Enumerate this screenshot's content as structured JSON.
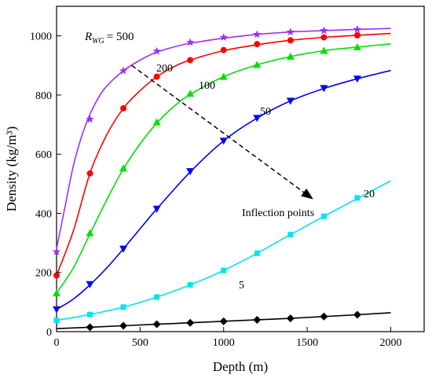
{
  "chart_data": {
    "type": "line",
    "xlabel": "Depth (m)",
    "ylabel": "Density (kg/m³)",
    "xlim": [
      0,
      2200
    ],
    "ylim": [
      0,
      1100
    ],
    "x_ticks": [
      0,
      500,
      1000,
      1500,
      2000
    ],
    "y_ticks": [
      0,
      200,
      400,
      600,
      800,
      1000
    ],
    "grid": false,
    "series": [
      {
        "name": "500",
        "color": "#9b30ff",
        "marker": "star",
        "curve": {
          "x": [
            0,
            50,
            100,
            150,
            200,
            250,
            300,
            400,
            500,
            600,
            700,
            800,
            1000,
            1200,
            1400,
            1600,
            1800,
            2000
          ],
          "y": [
            280,
            420,
            560,
            660,
            735,
            790,
            830,
            882,
            918,
            945,
            962,
            975,
            992,
            1005,
            1013,
            1018,
            1022,
            1025
          ]
        },
        "points": {
          "x": [
            0,
            200,
            400,
            600,
            800,
            1000,
            1200,
            1400,
            1600,
            1800
          ],
          "y": [
            270,
            718,
            882,
            948,
            978,
            995,
            1005,
            1013,
            1018,
            1022
          ]
        }
      },
      {
        "name": "200",
        "color": "#ff0000",
        "marker": "circle",
        "curve": {
          "x": [
            0,
            100,
            200,
            300,
            400,
            500,
            600,
            700,
            800,
            1000,
            1200,
            1400,
            1600,
            1800,
            2000
          ],
          "y": [
            190,
            340,
            535,
            665,
            755,
            815,
            862,
            895,
            918,
            950,
            970,
            985,
            995,
            1002,
            1008
          ]
        },
        "points": {
          "x": [
            0,
            200,
            400,
            600,
            800,
            1000,
            1200,
            1400,
            1600,
            1800
          ],
          "y": [
            190,
            535,
            755,
            862,
            918,
            952,
            972,
            985,
            995,
            1002
          ]
        }
      },
      {
        "name": "100",
        "color": "#00e000",
        "marker": "triangle-up",
        "curve": {
          "x": [
            0,
            100,
            200,
            300,
            400,
            500,
            600,
            700,
            800,
            1000,
            1200,
            1400,
            1600,
            1800,
            2000
          ],
          "y": [
            130,
            215,
            330,
            445,
            550,
            635,
            705,
            760,
            802,
            862,
            902,
            930,
            950,
            962,
            973
          ]
        },
        "points": {
          "x": [
            0,
            200,
            400,
            600,
            800,
            1000,
            1200,
            1400,
            1600,
            1800
          ],
          "y": [
            130,
            333,
            552,
            708,
            805,
            862,
            902,
            930,
            950,
            962
          ]
        }
      },
      {
        "name": "50",
        "color": "#0000ff",
        "marker": "triangle-down",
        "curve": {
          "x": [
            0,
            100,
            200,
            300,
            400,
            500,
            600,
            800,
            1000,
            1200,
            1400,
            1600,
            1800,
            2000
          ],
          "y": [
            75,
            110,
            158,
            215,
            280,
            348,
            415,
            540,
            645,
            722,
            780,
            822,
            855,
            883
          ]
        },
        "points": {
          "x": [
            0,
            200,
            400,
            600,
            800,
            1000,
            1200,
            1400,
            1600,
            1800
          ],
          "y": [
            75,
            160,
            280,
            415,
            542,
            645,
            722,
            780,
            823,
            855
          ]
        }
      },
      {
        "name": "20",
        "color": "#00e5ee",
        "marker": "square",
        "curve": {
          "x": [
            0,
            200,
            400,
            600,
            800,
            1000,
            1200,
            1400,
            1600,
            1800,
            2000
          ],
          "y": [
            38,
            58,
            83,
            117,
            158,
            207,
            265,
            328,
            390,
            450,
            510
          ]
        },
        "points": {
          "x": [
            0,
            200,
            400,
            600,
            800,
            1000,
            1200,
            1400,
            1600,
            1800
          ],
          "y": [
            38,
            58,
            83,
            117,
            158,
            207,
            265,
            328,
            390,
            452
          ]
        }
      },
      {
        "name": "5",
        "color": "#000000",
        "marker": "diamond",
        "curve": {
          "x": [
            0,
            200,
            400,
            600,
            800,
            1000,
            1200,
            1400,
            1600,
            1800,
            2000
          ],
          "y": [
            10,
            15,
            20,
            25,
            30,
            35,
            40,
            45,
            51,
            57,
            64
          ]
        },
        "points": {
          "x": [
            200,
            400,
            600,
            800,
            1000,
            1200,
            1400,
            1600,
            1800
          ],
          "y": [
            15,
            20,
            25,
            30,
            35,
            40,
            45,
            51,
            57
          ]
        }
      }
    ],
    "annotations": {
      "rwg_symbol": "R",
      "rwg_subscript": "WG",
      "rwg_value": "= 500",
      "inflection_label": "Inflection points",
      "inflection_arrow": {
        "from": [
          450,
          900
        ],
        "to": [
          1530,
          450
        ]
      }
    }
  }
}
